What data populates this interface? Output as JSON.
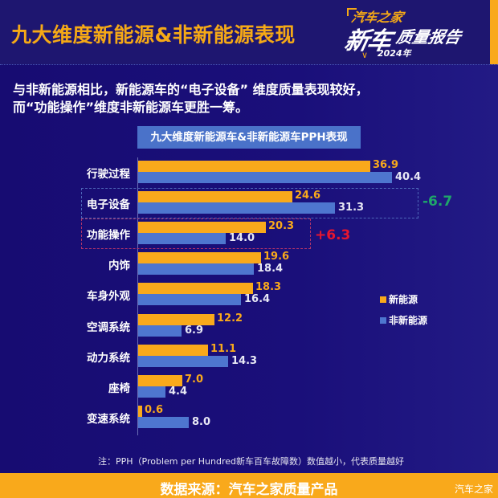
{
  "header": {
    "title": "九大维度新能源&非新能源表现",
    "logo": {
      "brand": "汽车之家",
      "big": "新车",
      "report": "质量报告",
      "year": "2024年"
    }
  },
  "subtitle": {
    "line1": "与非新能源相比，新能源车的“电子设备” 维度质量表现较好，",
    "line2": "而“功能操作”维度非新能源车更胜一筹。"
  },
  "colors": {
    "background": "#170c72",
    "accent_orange": "#f9a91b",
    "bar_blue": "#4e76cf",
    "negative_green": "#1fa76a",
    "positive_red": "#e8152e"
  },
  "chart_data": {
    "type": "bar",
    "orientation": "horizontal",
    "title": "九大维度新能源车&非新能源车PPH表现",
    "categories": [
      "行驶过程",
      "电子设备",
      "功能操作",
      "内饰",
      "车身外观",
      "空调系统",
      "动力系统",
      "座椅",
      "变速系统"
    ],
    "series": [
      {
        "name": "新能源",
        "color": "#f9a91b",
        "values": [
          36.9,
          24.6,
          20.3,
          19.6,
          18.3,
          12.2,
          11.1,
          7.0,
          0.6
        ]
      },
      {
        "name": "非新能源",
        "color": "#4e76cf",
        "values": [
          40.4,
          31.3,
          14.0,
          18.4,
          16.4,
          6.9,
          14.3,
          4.4,
          8.0
        ]
      }
    ],
    "annotations": [
      {
        "category": "电子设备",
        "text": "-6.7",
        "color": "#1fa76a"
      },
      {
        "category": "功能操作",
        "text": "+6.3",
        "color": "#e8152e"
      }
    ],
    "legend_position": "right",
    "grid": false,
    "xlabel": "",
    "ylabel": "",
    "xlim": [
      0,
      42
    ]
  },
  "chart": {
    "title": "九大维度新能源车&非新能源车PPH表现",
    "rows": [
      {
        "label": "行驶过程",
        "nev": "36.9",
        "ice": "40.4"
      },
      {
        "label": "电子设备",
        "nev": "24.6",
        "ice": "31.3"
      },
      {
        "label": "功能操作",
        "nev": "20.3",
        "ice": "14.0"
      },
      {
        "label": "内饰",
        "nev": "19.6",
        "ice": "18.4"
      },
      {
        "label": "车身外观",
        "nev": "18.3",
        "ice": "16.4"
      },
      {
        "label": "空调系统",
        "nev": "12.2",
        "ice": "6.9"
      },
      {
        "label": "动力系统",
        "nev": "11.1",
        "ice": "14.3"
      },
      {
        "label": "座椅",
        "nev": "7.0",
        "ice": "4.4"
      },
      {
        "label": "变速系统",
        "nev": "0.6",
        "ice": "8.0"
      }
    ],
    "diff_electronics": "-6.7",
    "diff_function": "+6.3",
    "legend": {
      "nev": "新能源",
      "ice": "非新能源"
    }
  },
  "footer": {
    "note": "注：PPH（Problem per Hundred新车百车故障数）数值越小，代表质量越好",
    "source": "数据来源：汽车之家质量产品",
    "watermark": "汽车之家"
  }
}
